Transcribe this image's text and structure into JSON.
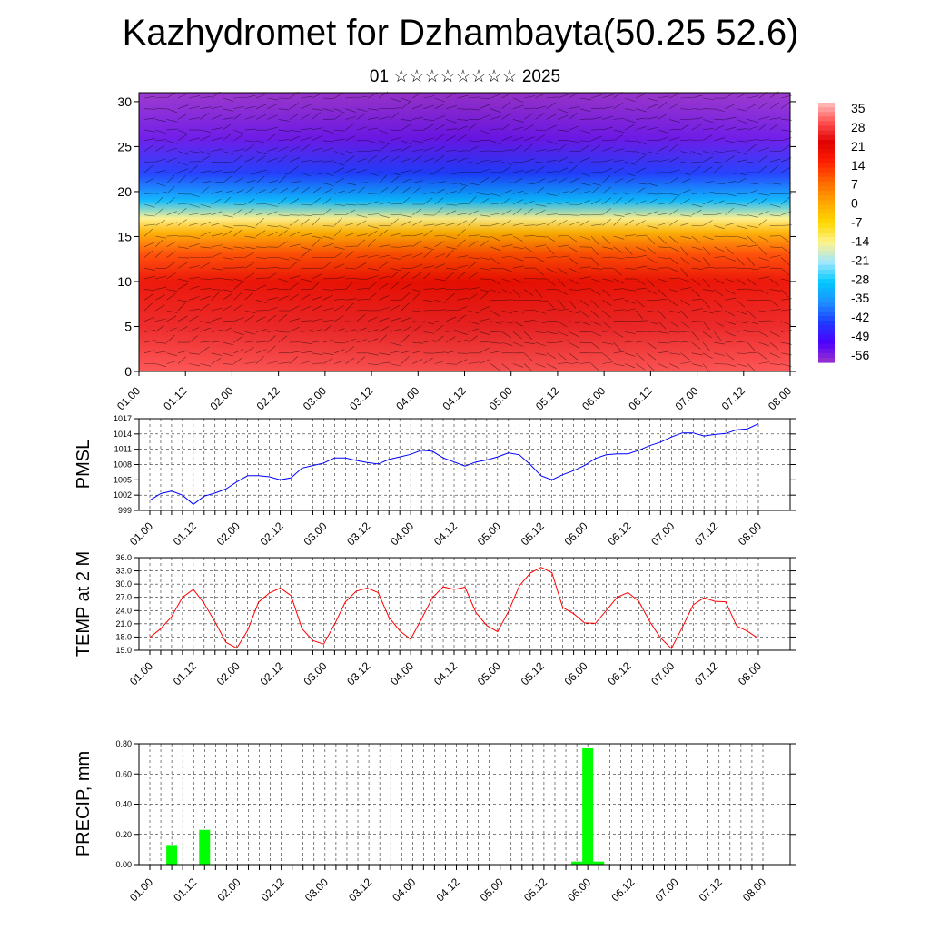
{
  "title": "Kazhydromet for Dzhambayta(50.25 52.6)",
  "subtitle": "01 ☆☆☆☆☆☆☆☆ 2025",
  "colors": {
    "pmsl_line": "#0000ff",
    "temp_line": "#ff0000",
    "precip_bar": "#00ff00",
    "grid": "#000000",
    "colorbar": [
      "#9932cc",
      "#4b00ff",
      "#1e3cff",
      "#1e90ff",
      "#00c8ff",
      "#a0e6ff",
      "#fff28c",
      "#ffd700",
      "#ffa500",
      "#ff6a00",
      "#ff2000",
      "#e00000",
      "#ff5050",
      "#ffc0c0"
    ]
  },
  "chart_data": [
    {
      "type": "heatmap",
      "name": "upper-air-section",
      "y_ticks": [
        "0",
        "5",
        "10",
        "15",
        "20",
        "25",
        "30"
      ],
      "ylim": [
        0,
        31
      ],
      "x_ticks": [
        "01.00",
        "01.12",
        "02.00",
        "02.12",
        "03.00",
        "03.12",
        "04.00",
        "04.12",
        "05.00",
        "05.12",
        "06.00",
        "06.12",
        "07.00",
        "07.12",
        "08.00"
      ],
      "colorbar_labels": [
        "35",
        "28",
        "21",
        "14",
        "7",
        "0",
        "-7",
        "-14",
        "-21",
        "-28",
        "-35",
        "-42",
        "-49",
        "-56"
      ],
      "bands": [
        {
          "y": 0,
          "value": 28
        },
        {
          "y": 5,
          "value": 24
        },
        {
          "y": 10,
          "value": 18
        },
        {
          "y": 13,
          "value": 10
        },
        {
          "y": 15.5,
          "value": -2
        },
        {
          "y": 17,
          "value": -14
        },
        {
          "y": 19,
          "value": -30
        },
        {
          "y": 22,
          "value": -42
        },
        {
          "y": 26,
          "value": -52
        },
        {
          "y": 31,
          "value": -58
        }
      ]
    },
    {
      "type": "line",
      "name": "pmsl",
      "ylabel": "PMSL",
      "y_ticks": [
        "1017",
        "1014",
        "1011",
        "1008",
        "1005",
        "1002",
        "999"
      ],
      "ylim": [
        999,
        1017
      ],
      "x_ticks": [
        "01.00",
        "01.12",
        "02.00",
        "02.12",
        "03.00",
        "03.12",
        "04.00",
        "04.12",
        "05.00",
        "05.12",
        "06.00",
        "06.12",
        "07.00",
        "07.12",
        "08.00"
      ],
      "x": [
        0,
        3,
        6,
        9,
        12,
        15,
        18,
        21,
        24,
        27,
        30,
        33,
        36,
        39,
        42,
        45,
        48,
        51,
        54,
        57,
        60,
        63,
        66,
        69,
        72,
        75,
        78,
        81,
        84,
        87,
        90,
        93,
        96,
        99,
        102,
        105,
        108,
        111,
        114,
        117,
        120,
        123,
        126,
        129,
        132,
        135,
        138,
        141,
        144,
        147,
        150,
        153,
        156,
        159,
        162,
        165,
        168
      ],
      "values": [
        1001.0,
        1002.3,
        1002.8,
        1002.0,
        1000.2,
        1001.8,
        1002.4,
        1003.2,
        1004.6,
        1005.8,
        1005.8,
        1005.6,
        1005.0,
        1005.4,
        1007.3,
        1007.8,
        1008.3,
        1009.3,
        1009.3,
        1008.8,
        1008.4,
        1008.1,
        1009.0,
        1009.5,
        1010.0,
        1010.8,
        1010.6,
        1009.3,
        1008.5,
        1007.7,
        1008.5,
        1008.9,
        1009.5,
        1010.3,
        1009.9,
        1008.0,
        1005.8,
        1005.0,
        1006.0,
        1006.8,
        1007.8,
        1009.2,
        1009.9,
        1010.1,
        1010.1,
        1010.8,
        1011.7,
        1012.4,
        1013.4,
        1014.2,
        1014.2,
        1013.6,
        1013.9,
        1014.1,
        1014.8,
        1015.0,
        1016.0
      ]
    },
    {
      "type": "line",
      "name": "temp-2m",
      "ylabel": "TEMP at 2 M",
      "y_ticks": [
        "36.0",
        "33.0",
        "30.0",
        "27.0",
        "24.0",
        "21.0",
        "18.0",
        "15.0"
      ],
      "ylim": [
        15,
        36
      ],
      "x_ticks": [
        "01.00",
        "01.12",
        "02.00",
        "02.12",
        "03.00",
        "03.12",
        "04.00",
        "04.12",
        "05.00",
        "05.12",
        "06.00",
        "06.12",
        "07.00",
        "07.12",
        "08.00"
      ],
      "x": [
        0,
        3,
        6,
        9,
        12,
        15,
        18,
        21,
        24,
        27,
        30,
        33,
        36,
        39,
        42,
        45,
        48,
        51,
        54,
        57,
        60,
        63,
        66,
        69,
        72,
        75,
        78,
        81,
        84,
        87,
        90,
        93,
        96,
        99,
        102,
        105,
        108,
        111,
        114,
        117,
        120,
        123,
        126,
        129,
        132,
        135,
        138,
        141,
        144,
        147,
        150,
        153,
        156,
        159,
        162,
        165,
        168
      ],
      "values": [
        17.9,
        19.9,
        22.6,
        27.0,
        28.8,
        25.6,
        21.4,
        16.8,
        15.5,
        19.5,
        25.9,
        28.0,
        29.1,
        27.4,
        19.9,
        17.2,
        16.4,
        20.9,
        26.0,
        28.4,
        29.1,
        28.1,
        22.5,
        19.4,
        17.5,
        22.1,
        26.9,
        29.4,
        28.8,
        29.3,
        23.6,
        20.6,
        19.2,
        23.8,
        29.6,
        32.5,
        33.8,
        32.6,
        24.7,
        23.3,
        21.2,
        21.1,
        24.0,
        27.0,
        28.1,
        26.1,
        21.5,
        17.8,
        15.4,
        20.2,
        25.3,
        26.9,
        26.1,
        26.0,
        20.5,
        19.3,
        17.7
      ]
    },
    {
      "type": "bar",
      "name": "precip",
      "ylabel": "PRECIP, mm",
      "y_ticks": [
        "0.80",
        "0.60",
        "0.40",
        "0.20",
        "0.00"
      ],
      "ylim": [
        0,
        0.8
      ],
      "x_ticks": [
        "01.00",
        "01.12",
        "02.00",
        "02.12",
        "03.00",
        "03.12",
        "04.00",
        "04.12",
        "05.00",
        "05.12",
        "06.00",
        "06.12",
        "07.00",
        "07.12",
        "08.00"
      ],
      "x": [
        6,
        15,
        117,
        120,
        123
      ],
      "values": [
        0.13,
        0.23,
        0.02,
        0.77,
        0.02
      ]
    }
  ]
}
